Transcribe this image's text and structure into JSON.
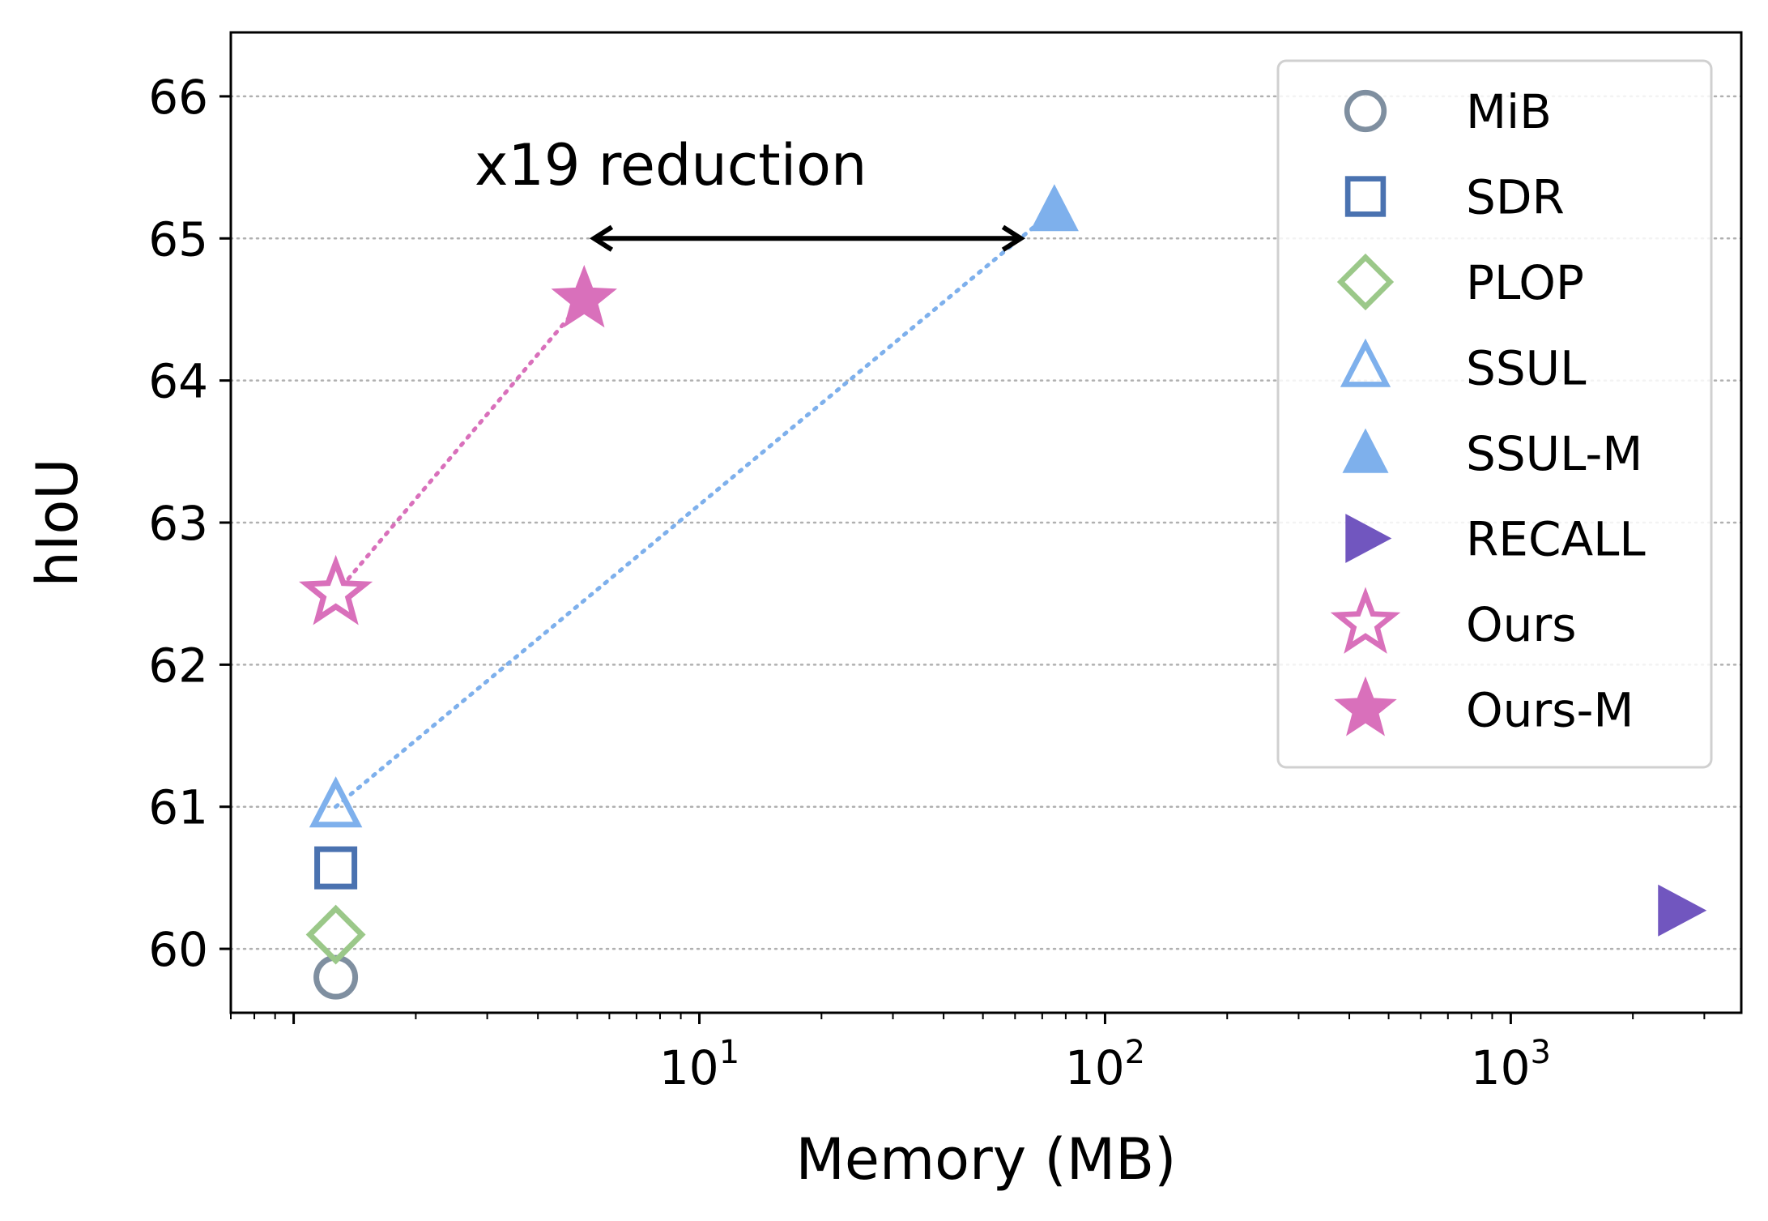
{
  "chart_data": {
    "type": "scatter",
    "xlabel": "Memory (MB)",
    "ylabel": "hIoU",
    "xscale": "log",
    "xlim": [
      0.7,
      3700
    ],
    "ylim": [
      59.55,
      66.45
    ],
    "x_ticks": [
      {
        "value": 10,
        "base": "10",
        "exp": "1"
      },
      {
        "value": 100,
        "base": "10",
        "exp": "2"
      },
      {
        "value": 1000,
        "base": "10",
        "exp": "3"
      }
    ],
    "y_ticks": [
      60,
      61,
      62,
      63,
      64,
      65,
      66
    ],
    "y_tick_labels": [
      "60",
      "61",
      "62",
      "63",
      "64",
      "65",
      "66"
    ],
    "grid": "horizontal dotted",
    "legend_position": "top-right",
    "series": [
      {
        "name": "MiB",
        "x": 1.27,
        "y": 59.8,
        "marker": "circle-open",
        "color": "#7f8fa0"
      },
      {
        "name": "SDR",
        "x": 1.27,
        "y": 60.57,
        "marker": "square-open",
        "color": "#4a72b0"
      },
      {
        "name": "PLOP",
        "x": 1.27,
        "y": 60.1,
        "marker": "diamond-open",
        "color": "#9bc889"
      },
      {
        "name": "SSUL",
        "x": 1.27,
        "y": 61.0,
        "marker": "triangle-up-open",
        "color": "#7eb0ec"
      },
      {
        "name": "SSUL-M",
        "x": 75,
        "y": 65.2,
        "marker": "triangle-up-filled",
        "color": "#7eb0ec"
      },
      {
        "name": "RECALL",
        "x": 2600,
        "y": 60.27,
        "marker": "triangle-right-filled",
        "color": "#7156bf"
      },
      {
        "name": "Ours",
        "x": 1.27,
        "y": 62.5,
        "marker": "star-open",
        "color": "#d970bb"
      },
      {
        "name": "Ours-M",
        "x": 5.2,
        "y": 64.57,
        "marker": "star-filled",
        "color": "#d970bb"
      }
    ],
    "connectors": [
      {
        "from": "SSUL",
        "to": "SSUL-M",
        "color": "#7eb0ec",
        "style": "dotted"
      },
      {
        "from": "Ours",
        "to": "Ours-M",
        "color": "#d970bb",
        "style": "dotted"
      }
    ],
    "annotations": [
      {
        "text": "x19 reduction",
        "x": 8.5,
        "y": 65.35,
        "arrow": {
          "x1": 5.5,
          "x2": 62,
          "y": 65.0,
          "style": "double-headed"
        }
      }
    ]
  }
}
